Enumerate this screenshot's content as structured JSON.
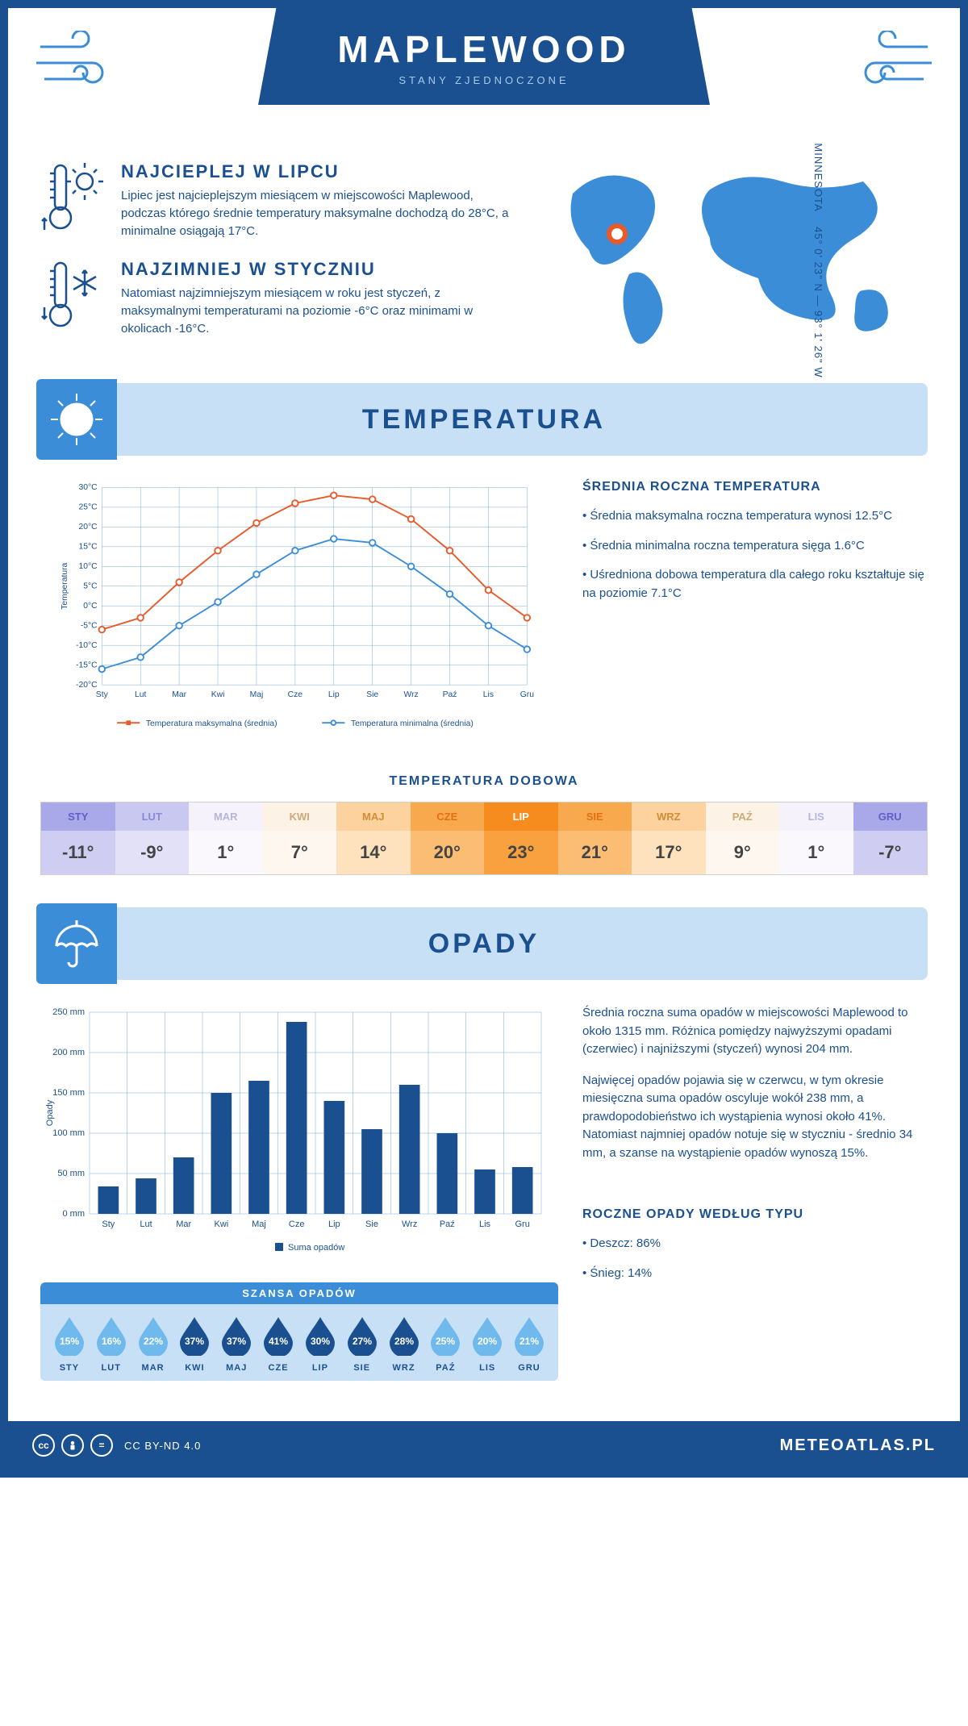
{
  "header": {
    "title": "MAPLEWOOD",
    "subtitle": "STANY ZJEDNOCZONE"
  },
  "intro": {
    "hot": {
      "title": "NAJCIEPLEJ W LIPCU",
      "text": "Lipiec jest najcieplejszym miesiącem w miejscowości Maplewood, podczas którego średnie temperatury maksymalne dochodzą do 28°C, a minimalne osiągają 17°C."
    },
    "cold": {
      "title": "NAJZIMNIEJ W STYCZNIU",
      "text": "Natomiast najzimniejszym miesiącem w roku jest styczeń, z maksymalnymi temperaturami na poziomie -6°C oraz minimami w okolicach -16°C."
    },
    "coords": "45° 0' 23\" N — 93° 1' 26\" W",
    "region": "MINNESOTA"
  },
  "section_temp_title": "TEMPERATURA",
  "section_precip_title": "OPADY",
  "months": [
    "Sty",
    "Lut",
    "Mar",
    "Kwi",
    "Maj",
    "Cze",
    "Lip",
    "Sie",
    "Wrz",
    "Paź",
    "Lis",
    "Gru"
  ],
  "months_upper": [
    "STY",
    "LUT",
    "MAR",
    "KWI",
    "MAJ",
    "CZE",
    "LIP",
    "SIE",
    "WRZ",
    "PAŹ",
    "LIS",
    "GRU"
  ],
  "temp_chart": {
    "type": "line",
    "y_label": "Temperatura",
    "y_ticks": [
      -20,
      -15,
      -10,
      -5,
      0,
      5,
      10,
      15,
      20,
      25,
      30
    ],
    "y_tick_labels": [
      "-20°C",
      "-15°C",
      "-10°C",
      "-5°C",
      "0°C",
      "5°C",
      "10°C",
      "15°C",
      "20°C",
      "25°C",
      "30°C"
    ],
    "ylim": [
      -20,
      30
    ],
    "max_series": [
      -6,
      -3,
      6,
      14,
      21,
      26,
      28,
      27,
      22,
      14,
      4,
      -3
    ],
    "min_series": [
      -16,
      -13,
      -5,
      1,
      8,
      14,
      17,
      16,
      10,
      3,
      -5,
      -11
    ],
    "max_color": "#e85a2a",
    "min_color": "#3b8dd8",
    "legend_max": "Temperatura maksymalna (średnia)",
    "legend_min": "Temperatura minimalna (średnia)",
    "grid_color": "#7aa8d4",
    "background_color": "#ffffff",
    "line_width": 2,
    "marker": "circle",
    "marker_size": 4
  },
  "temp_side": {
    "title": "ŚREDNIA ROCZNA TEMPERATURA",
    "b1": "• Średnia maksymalna roczna temperatura wynosi 12.5°C",
    "b2": "• Średnia minimalna roczna temperatura sięga 1.6°C",
    "b3": "• Uśredniona dobowa temperatura dla całego roku kształtuje się na poziomie 7.1°C"
  },
  "temp_daily": {
    "title": "TEMPERATURA DOBOWA",
    "values": [
      -11,
      -9,
      1,
      7,
      14,
      20,
      23,
      21,
      17,
      9,
      1,
      -7
    ],
    "value_labels": [
      "-11°",
      "-9°",
      "1°",
      "7°",
      "14°",
      "20°",
      "23°",
      "21°",
      "17°",
      "9°",
      "1°",
      "-7°"
    ],
    "colors_head": [
      "#a9a8e8",
      "#c9c8f0",
      "#f5f2fb",
      "#fdf2e6",
      "#fcd39e",
      "#f9a94d",
      "#f78c1e",
      "#f9a94d",
      "#fcd39e",
      "#fdf2e6",
      "#f5f2fb",
      "#a9a8e8"
    ],
    "head_text_colors": [
      "#6160c7",
      "#8a89d6",
      "#b6b5da",
      "#cfa978",
      "#d28c3a",
      "#e07112",
      "#ffffff",
      "#e07112",
      "#d28c3a",
      "#cfa978",
      "#b6b5da",
      "#6160c7"
    ],
    "colors_body": [
      "#cfcef2",
      "#e2e1f7",
      "#faf8fd",
      "#fef7ef",
      "#fde2bd",
      "#fbbd74",
      "#f9a13e",
      "#fbbd74",
      "#fde2bd",
      "#fef7ef",
      "#faf8fd",
      "#cfcef2"
    ]
  },
  "precip_chart": {
    "type": "bar",
    "y_label": "Opady",
    "y_ticks": [
      0,
      50,
      100,
      150,
      200,
      250
    ],
    "y_tick_labels": [
      "0 mm",
      "50 mm",
      "100 mm",
      "150 mm",
      "200 mm",
      "250 mm"
    ],
    "ylim": [
      0,
      250
    ],
    "values": [
      34,
      44,
      70,
      150,
      165,
      238,
      140,
      105,
      160,
      100,
      55,
      58
    ],
    "bar_color": "#1b5090",
    "legend": "Suma opadów",
    "grid_color": "#7aa8d4",
    "background_color": "#ffffff",
    "bar_width": 0.55
  },
  "precip_side": {
    "p1": "Średnia roczna suma opadów w miejscowości Maplewood to około 1315 mm. Różnica pomiędzy najwyższymi opadami (czerwiec) i najniższymi (styczeń) wynosi 204 mm.",
    "p2": "Najwięcej opadów pojawia się w czerwcu, w tym okresie miesięczna suma opadów oscyluje wokół 238 mm, a prawdopodobieństwo ich wystąpienia wynosi około 41%. Natomiast najmniej opadów notuje się w styczniu - średnio 34 mm, a szanse na wystąpienie opadów wynoszą 15%.",
    "type_title": "ROCZNE OPADY WEDŁUG TYPU",
    "rain": "• Deszcz: 86%",
    "snow": "• Śnieg: 14%"
  },
  "chance": {
    "title": "SZANSA OPADÓW",
    "percents": [
      15,
      16,
      22,
      37,
      37,
      41,
      30,
      27,
      28,
      25,
      20,
      21
    ],
    "labels": [
      "15%",
      "16%",
      "22%",
      "37%",
      "37%",
      "41%",
      "30%",
      "27%",
      "28%",
      "25%",
      "20%",
      "21%"
    ],
    "light_color": "#6fb9ed",
    "dark_color": "#1b5090",
    "threshold": 25
  },
  "footer": {
    "license": "CC BY-ND 4.0",
    "brand": "METEOATLAS.PL"
  },
  "colors": {
    "primary": "#1b5090",
    "accent": "#3b8dd8",
    "banner_bg": "#c8e0f5"
  }
}
